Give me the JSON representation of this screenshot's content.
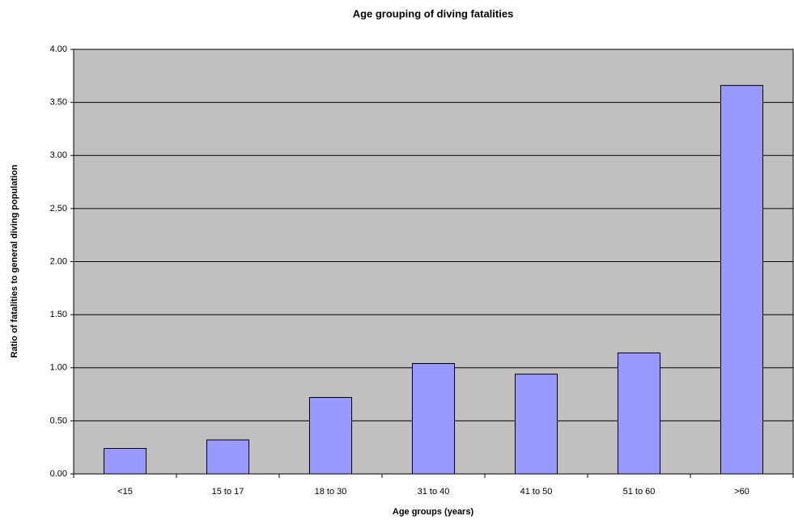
{
  "chart_data": {
    "type": "bar",
    "title": "Age grouping of diving fatalities",
    "x_label": "Age groups (years)",
    "y_label": "Ratio of fatalities to general diving population",
    "categories": [
      "<15",
      "15 to 17",
      "18 to 30",
      "31 to 40",
      "41 to 50",
      "51 to 60",
      ">60"
    ],
    "values": [
      0.24,
      0.32,
      0.72,
      1.04,
      0.94,
      1.14,
      3.66
    ],
    "color": "#9999ff",
    "ylim": [
      0,
      4
    ],
    "yticks": [
      {
        "value": 0,
        "label": "0.00"
      },
      {
        "value": 0.5,
        "label": "0.50"
      },
      {
        "value": 1,
        "label": "1.00"
      },
      {
        "value": 1.5,
        "label": "1.50"
      },
      {
        "value": 2,
        "label": "2.00"
      },
      {
        "value": 2.5,
        "label": "2.50"
      },
      {
        "value": 3,
        "label": "3.00"
      },
      {
        "value": 3.5,
        "label": "3.50"
      },
      {
        "value": 4,
        "label": "4.00"
      }
    ],
    "grid": true
  }
}
